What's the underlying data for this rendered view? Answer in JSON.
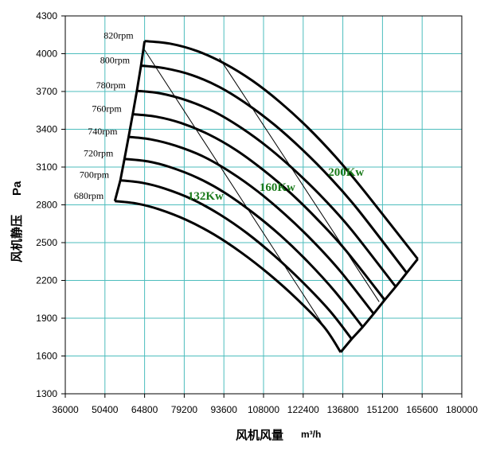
{
  "chart_data": {
    "type": "line",
    "title": "",
    "xlabel": "风机风量",
    "xunit": "m³/h",
    "ylabel": "风机静压",
    "yunit": "Pa",
    "xlim": [
      36000,
      180000
    ],
    "ylim": [
      1300,
      4300
    ],
    "x_ticks": [
      36000,
      50400,
      64800,
      79200,
      93600,
      108000,
      122400,
      136800,
      151200,
      165600,
      180000
    ],
    "y_ticks": [
      1300,
      1600,
      1900,
      2200,
      2500,
      2800,
      3100,
      3400,
      3700,
      4000,
      4300
    ],
    "grid": true,
    "grid_color": "#4dbdbd",
    "curve_color": "#000000",
    "power_label_color": "#1a7a1a",
    "series": [
      {
        "name": "680rpm",
        "points": [
          [
            54000,
            2830
          ],
          [
            62000,
            2810
          ],
          [
            70000,
            2765
          ],
          [
            80000,
            2680
          ],
          [
            90000,
            2565
          ],
          [
            100000,
            2420
          ],
          [
            110000,
            2250
          ],
          [
            120000,
            2055
          ],
          [
            130000,
            1830
          ],
          [
            136000,
            1630
          ]
        ]
      },
      {
        "name": "700rpm",
        "points": [
          [
            56000,
            2995
          ],
          [
            64000,
            2975
          ],
          [
            72000,
            2930
          ],
          [
            82000,
            2845
          ],
          [
            92000,
            2725
          ],
          [
            102000,
            2575
          ],
          [
            112000,
            2395
          ],
          [
            122000,
            2190
          ],
          [
            132000,
            1960
          ],
          [
            140000,
            1735
          ]
        ]
      },
      {
        "name": "720rpm",
        "points": [
          [
            57500,
            3165
          ],
          [
            66000,
            3145
          ],
          [
            74000,
            3100
          ],
          [
            84000,
            3015
          ],
          [
            94000,
            2895
          ],
          [
            104000,
            2740
          ],
          [
            114000,
            2560
          ],
          [
            124000,
            2350
          ],
          [
            134000,
            2110
          ],
          [
            144000,
            1830
          ]
        ]
      },
      {
        "name": "740rpm",
        "points": [
          [
            59000,
            3340
          ],
          [
            67000,
            3320
          ],
          [
            76000,
            3270
          ],
          [
            86000,
            3185
          ],
          [
            96000,
            3060
          ],
          [
            106000,
            2905
          ],
          [
            116000,
            2720
          ],
          [
            126000,
            2510
          ],
          [
            136000,
            2270
          ],
          [
            148000,
            1935
          ]
        ]
      },
      {
        "name": "760rpm",
        "points": [
          [
            60500,
            3520
          ],
          [
            69000,
            3500
          ],
          [
            78000,
            3450
          ],
          [
            88000,
            3360
          ],
          [
            98000,
            3235
          ],
          [
            108000,
            3075
          ],
          [
            118000,
            2890
          ],
          [
            128000,
            2675
          ],
          [
            138000,
            2435
          ],
          [
            152000,
            2045
          ]
        ]
      },
      {
        "name": "780rpm",
        "points": [
          [
            62000,
            3705
          ],
          [
            70500,
            3685
          ],
          [
            80000,
            3630
          ],
          [
            90000,
            3540
          ],
          [
            100000,
            3410
          ],
          [
            110000,
            3250
          ],
          [
            120000,
            3060
          ],
          [
            130000,
            2845
          ],
          [
            140000,
            2600
          ],
          [
            156000,
            2150
          ]
        ]
      },
      {
        "name": "800rpm",
        "points": [
          [
            63500,
            3905
          ],
          [
            72000,
            3885
          ],
          [
            82000,
            3830
          ],
          [
            92000,
            3735
          ],
          [
            102000,
            3600
          ],
          [
            112000,
            3435
          ],
          [
            122000,
            3240
          ],
          [
            132000,
            3020
          ],
          [
            142000,
            2770
          ],
          [
            160000,
            2260
          ]
        ]
      },
      {
        "name": "820rpm",
        "points": [
          [
            64800,
            4100
          ],
          [
            74000,
            4080
          ],
          [
            84000,
            4020
          ],
          [
            94000,
            3920
          ],
          [
            104000,
            3785
          ],
          [
            114000,
            3615
          ],
          [
            124000,
            3415
          ],
          [
            134000,
            3185
          ],
          [
            144000,
            2925
          ],
          [
            164000,
            2370
          ]
        ]
      }
    ],
    "power_lines": [
      {
        "name": "132Kw",
        "points": [
          [
            64800,
            4030
          ],
          [
            136000,
            1630
          ]
        ]
      },
      {
        "name": "160Kw",
        "points": [
          [
            92000,
            3965
          ],
          [
            150000,
            2030
          ]
        ]
      }
    ],
    "annotations": {
      "curve_labels": [
        "820rpm",
        "800rpm",
        "780rpm",
        "760rpm",
        "740rpm",
        "720rpm",
        "700rpm",
        "680rpm"
      ],
      "power_labels": [
        {
          "text": "132Kw",
          "x": 80500,
          "y": 2840
        },
        {
          "text": "160Kw",
          "x": 106500,
          "y": 2910
        },
        {
          "text": "200Kw",
          "x": 131500,
          "y": 3030
        }
      ]
    }
  }
}
